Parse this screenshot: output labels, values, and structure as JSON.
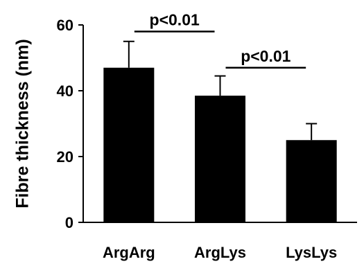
{
  "chart_data": {
    "type": "bar",
    "title": "",
    "xlabel": "",
    "ylabel": "Fibre thickness (nm)",
    "ylim": [
      0,
      60
    ],
    "yticks": [
      0,
      20,
      40,
      60
    ],
    "grid": false,
    "categories": [
      "ArgArg",
      "ArgLys",
      "LysLys"
    ],
    "values": [
      47,
      38.5,
      25
    ],
    "errors": [
      8,
      6,
      5
    ],
    "bar_color": "#000000",
    "significance": [
      {
        "from": 0,
        "to": 1,
        "label": "p<0.01",
        "y": 58
      },
      {
        "from": 1,
        "to": 2,
        "label": "p<0.01",
        "y": 47
      }
    ]
  }
}
